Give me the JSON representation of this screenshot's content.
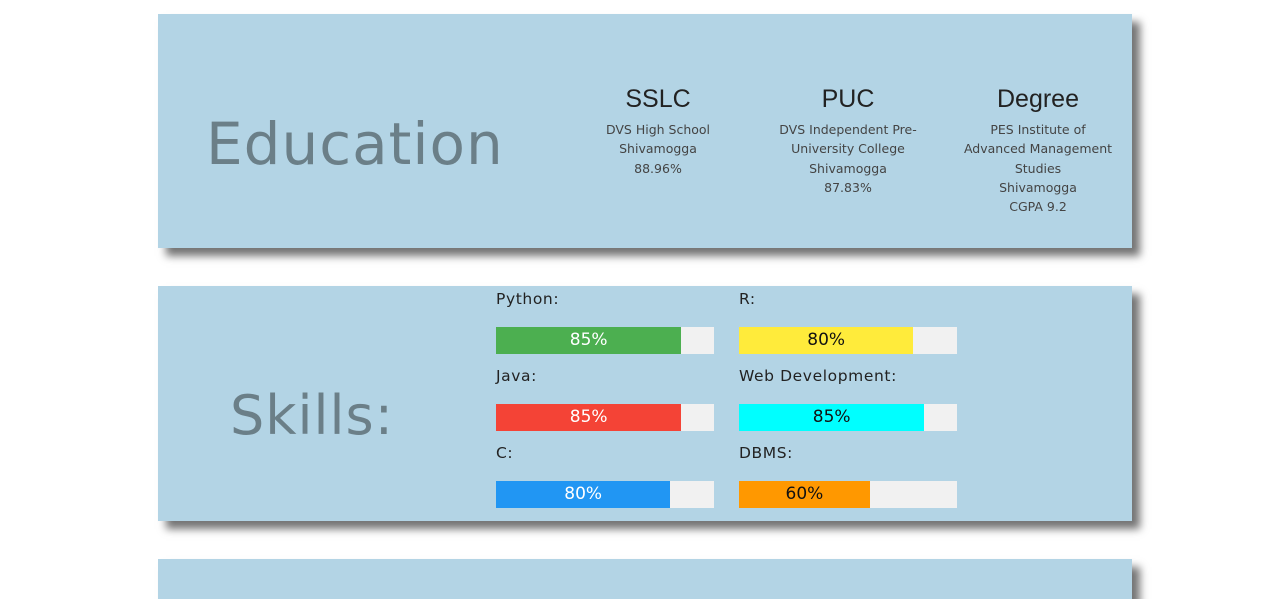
{
  "education": {
    "heading": "Education",
    "columns": [
      {
        "title": "SSLC",
        "lines": [
          "DVS High School",
          "Shivamogga",
          "88.96%"
        ]
      },
      {
        "title": "PUC",
        "lines": [
          "DVS Independent Pre-",
          "University College",
          "Shivamogga",
          "87.83%"
        ]
      },
      {
        "title": "Degree",
        "lines": [
          "PES Institute of",
          "Advanced Management",
          "Studies",
          "Shivamogga",
          "CGPA 9.2"
        ]
      }
    ]
  },
  "skills": {
    "heading": "Skills:",
    "items": [
      {
        "label": "Python:",
        "value_text": "85%",
        "percent": 85,
        "color": "#4caf50",
        "dark_text": false
      },
      {
        "label": "R:",
        "value_text": "80%",
        "percent": 80,
        "color": "#ffeb3b",
        "dark_text": true
      },
      {
        "label": "Java:",
        "value_text": "85%",
        "percent": 85,
        "color": "#f44336",
        "dark_text": false
      },
      {
        "label": "Web Development:",
        "value_text": "85%",
        "percent": 85,
        "color": "#00ffff",
        "dark_text": true
      },
      {
        "label": "C:",
        "value_text": "80%",
        "percent": 80,
        "color": "#2196f3",
        "dark_text": false
      },
      {
        "label": "DBMS:",
        "value_text": "60%",
        "percent": 60,
        "color": "#ff9800",
        "dark_text": true
      }
    ]
  },
  "colors": {
    "card_background": "#b3d4e5",
    "heading_text": "#6b7f88",
    "bar_track": "#f1f1f1"
  }
}
